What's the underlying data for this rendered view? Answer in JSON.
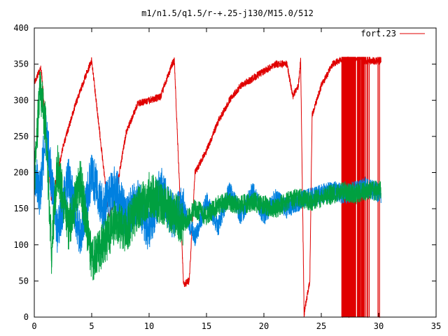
{
  "chart_data": {
    "type": "line",
    "title": "m1/n1.5/q1.5/r-+.25-j130/M15.0/512",
    "xlabel": "",
    "ylabel": "",
    "xlim": [
      0,
      35
    ],
    "ylim": [
      0,
      400
    ],
    "x_ticks": [
      0,
      5,
      10,
      15,
      20,
      25,
      30,
      35
    ],
    "y_ticks": [
      0,
      50,
      100,
      150,
      200,
      250,
      300,
      350,
      400
    ],
    "grid": false,
    "legend_position": "top-right",
    "wrap_max": 360,
    "series": [
      {
        "name": "fort.23",
        "color": "#e00000",
        "x": [
          0,
          0.6,
          1.5,
          2.5,
          3.5,
          4.5,
          5.0,
          6.5,
          7.0,
          8.0,
          9.0,
          10.0,
          11.0,
          12.0,
          12.2,
          13.0,
          13.5,
          14.0,
          15.0,
          16.0,
          17.0,
          18.0,
          19.0,
          20.0,
          21.0,
          22.0,
          22.3,
          22.5,
          23.0,
          23.2,
          23.5,
          24.0,
          24.2,
          25.0,
          26.0,
          27.0,
          28.0,
          29.0,
          30.2
        ],
        "y": [
          325,
          345,
          160,
          235,
          290,
          335,
          355,
          140,
          160,
          255,
          295,
          300,
          305,
          350,
          355,
          45,
          50,
          200,
          230,
          270,
          300,
          320,
          330,
          340,
          350,
          350,
          325,
          305,
          320,
          355,
          5,
          50,
          280,
          320,
          350,
          360,
          360,
          355,
          355
        ]
      },
      {
        "name": "",
        "color": "#0080e0",
        "x": [
          0,
          0.5,
          1.0,
          2.0,
          3.0,
          4.0,
          5.0,
          6.0,
          7.0,
          8.0,
          9.0,
          10.0,
          11.0,
          12.0,
          13.0,
          14.0,
          15.0,
          16.0,
          17.0,
          18.0,
          19.0,
          20.0,
          21.0,
          22.0,
          23.0,
          24.0,
          25.0,
          26.0,
          27.0,
          28.0,
          29.0,
          30.2
        ],
        "y": [
          200,
          170,
          260,
          120,
          190,
          110,
          200,
          150,
          180,
          140,
          160,
          120,
          180,
          140,
          150,
          110,
          160,
          125,
          175,
          140,
          175,
          140,
          165,
          150,
          160,
          165,
          170,
          175,
          170,
          175,
          180,
          170
        ]
      },
      {
        "name": "",
        "color": "#00a040",
        "x": [
          0,
          0.5,
          1.0,
          1.5,
          2.0,
          3.0,
          4.0,
          5.0,
          6.0,
          7.0,
          8.0,
          9.0,
          10.0,
          11.0,
          12.0,
          13.0,
          14.0,
          15.0,
          16.0,
          17.0,
          18.0,
          19.0,
          20.0,
          21.0,
          22.0,
          23.0,
          24.0,
          25.0,
          26.0,
          27.0,
          28.0,
          29.0,
          30.2
        ],
        "y": [
          190,
          320,
          260,
          90,
          210,
          120,
          190,
          80,
          100,
          130,
          120,
          150,
          170,
          160,
          145,
          130,
          150,
          140,
          155,
          160,
          155,
          160,
          155,
          150,
          160,
          165,
          160,
          165,
          170,
          175,
          170,
          175,
          175
        ]
      }
    ]
  }
}
